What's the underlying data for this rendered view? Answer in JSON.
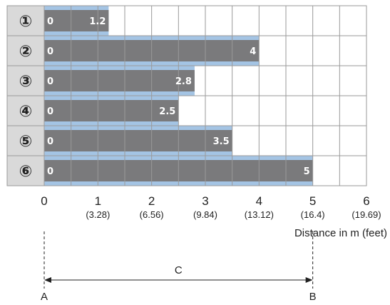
{
  "chart_data": {
    "type": "bar",
    "orientation": "horizontal",
    "categories": [
      "①",
      "②",
      "③",
      "④",
      "⑤",
      "⑥"
    ],
    "series": [
      {
        "start": [
          0,
          0,
          0,
          0,
          0,
          0
        ],
        "values": [
          1.2,
          4,
          2.8,
          2.5,
          3.5,
          5
        ]
      }
    ],
    "start_labels": [
      "0",
      "0",
      "0",
      "0",
      "0",
      "0"
    ],
    "value_labels": [
      "1.2",
      "4",
      "2.8",
      "2.5",
      "3.5",
      "5"
    ],
    "xlim": [
      0,
      6
    ],
    "x_ticks": [
      "0",
      "1",
      "2",
      "3",
      "4",
      "5",
      "6"
    ],
    "x_sub_ticks": [
      "",
      "(3.28)",
      "(6.56)",
      "(9.84)",
      "(13.12)",
      "(16.4)",
      "(19.69)"
    ],
    "xlabel": "Distance in m (feet)",
    "grid": true,
    "colors": {
      "bar": "#7a7a7c",
      "bar_outline": "#a4c4e4",
      "grid": "#9a9a9a",
      "label_col": "#d9d9d9"
    },
    "dimension": {
      "label": "C",
      "start_label": "A",
      "end_label": "B",
      "from": 0,
      "to": 5
    }
  }
}
